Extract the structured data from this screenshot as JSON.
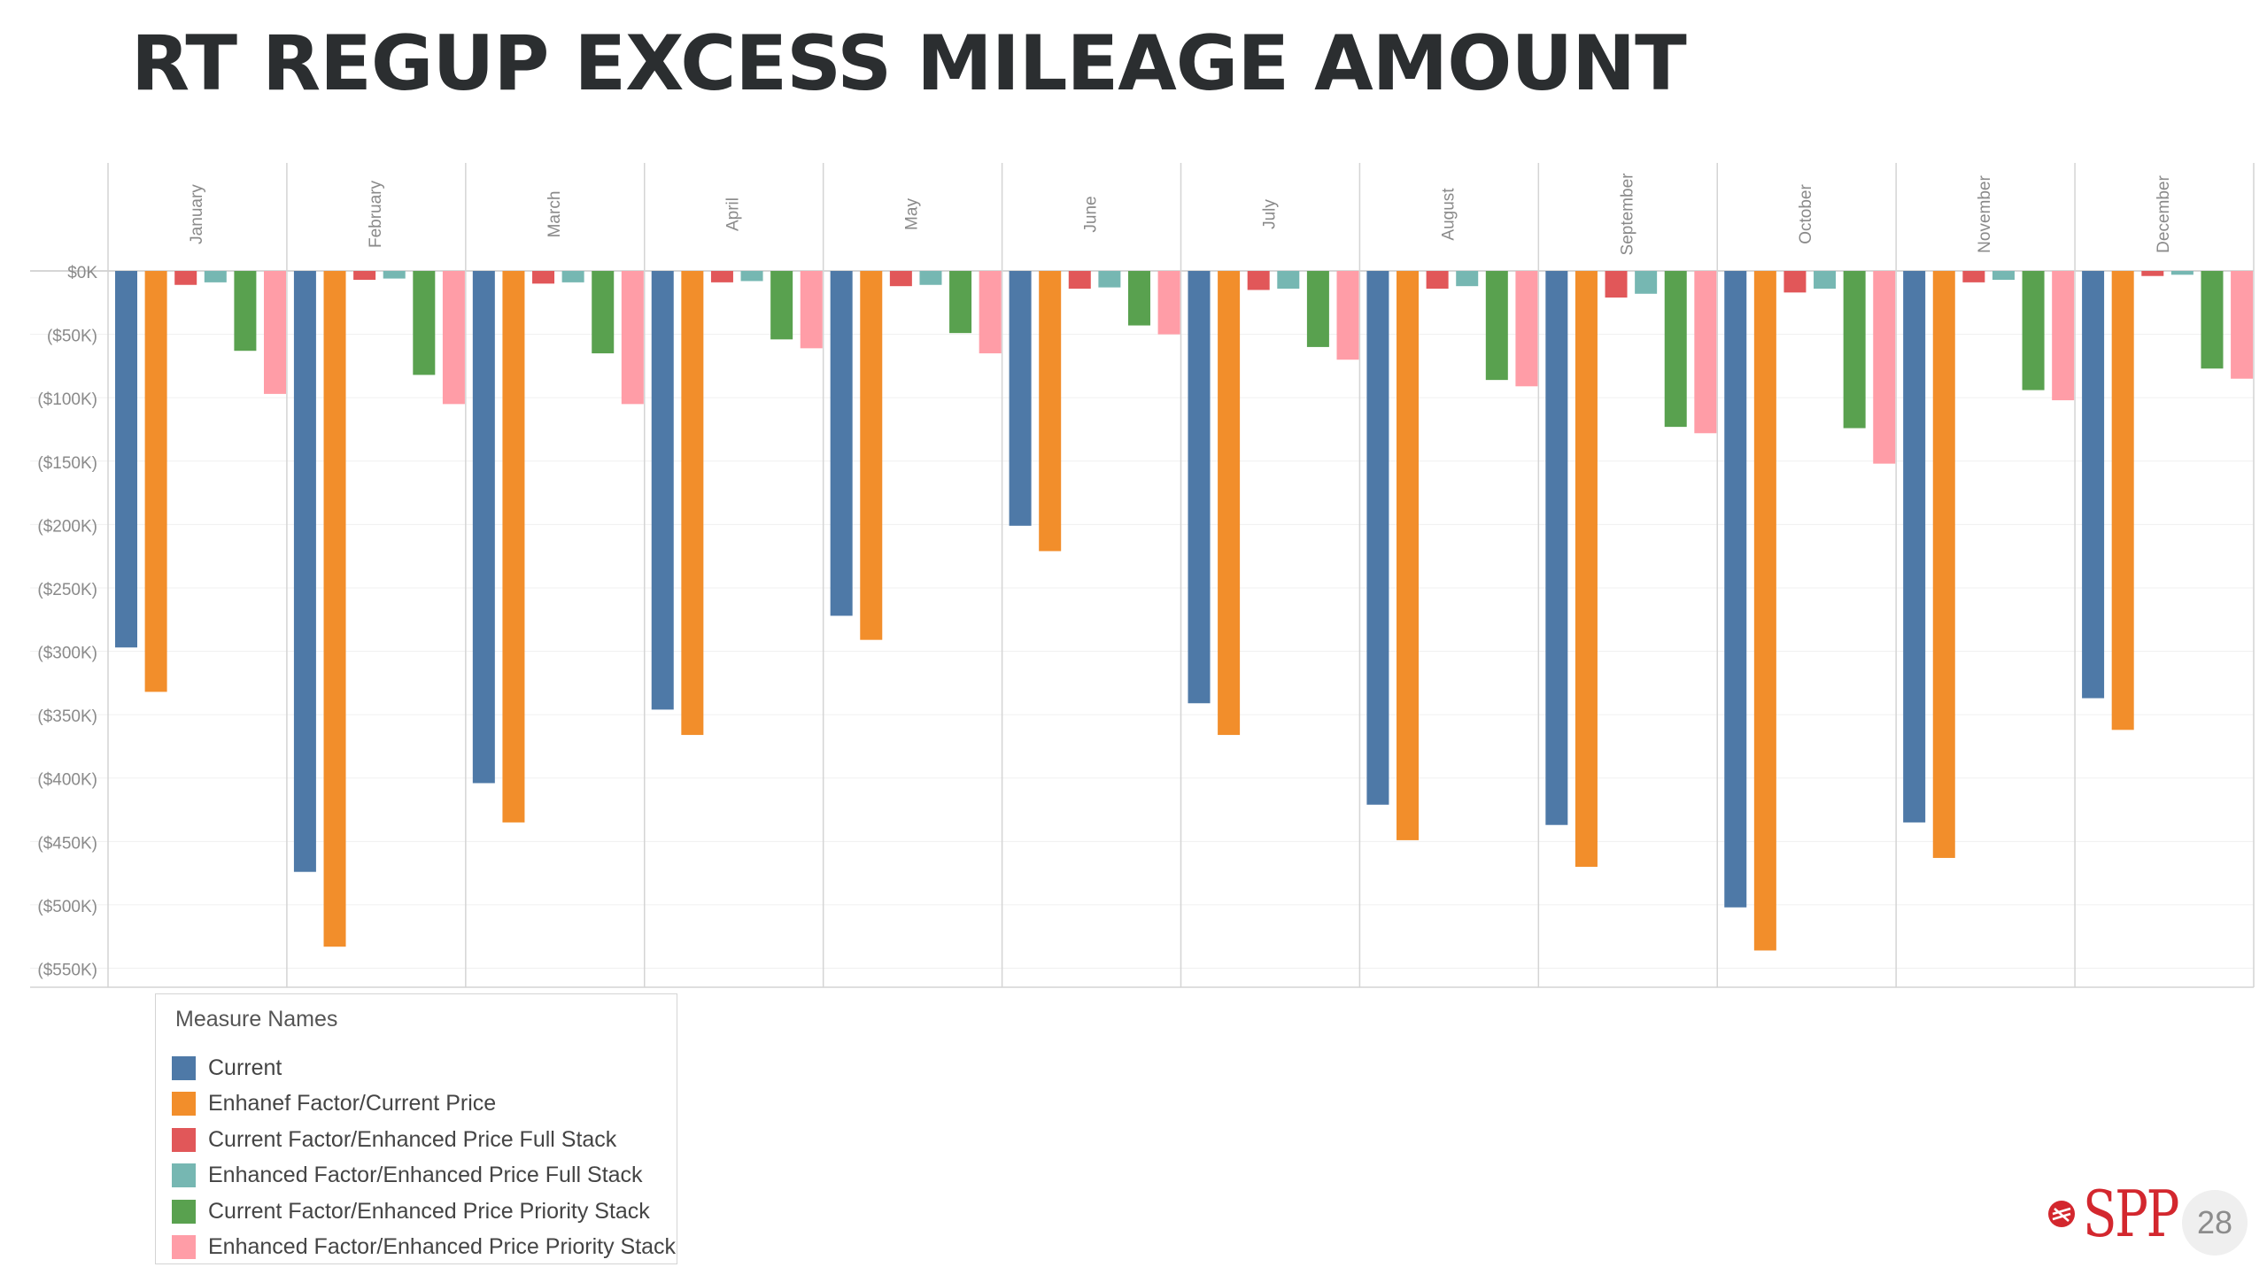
{
  "title": "RT REGUP EXCESS MILEAGE AMOUNT",
  "page_number": "28",
  "logo_text": "SPP",
  "colors": {
    "Current": "#4e79a7",
    "Enhanef Factor/Current Price": "#f28e2b",
    "Current Factor/Enhanced Price Full Stack": "#e15759",
    "Enhanced Factor/Enhanced Price Full Stack": "#76b7b2",
    "Current Factor/Enhanced Price Priority Stack": "#59a14f",
    "Enhanced Factor/Enhanced Price Priority Stack": "#ff9da7",
    "logo": "#d3272e"
  },
  "legend": {
    "title": "Measure Names",
    "items": [
      "Current",
      "Enhanef Factor/Current Price",
      "Current Factor/Enhanced Price Full Stack",
      "Enhanced Factor/Enhanced Price Full Stack",
      "Current Factor/Enhanced Price Priority Stack",
      "Enhanced Factor/Enhanced Price Priority Stack"
    ]
  },
  "chart_data": {
    "type": "bar",
    "categories": [
      "January",
      "February",
      "March",
      "April",
      "May",
      "June",
      "July",
      "August",
      "September",
      "October",
      "November",
      "December"
    ],
    "y_ticks": [
      "$0K",
      "($50K)",
      "($100K)",
      "($150K)",
      "($200K)",
      "($250K)",
      "($300K)",
      "($350K)",
      "($400K)",
      "($450K)",
      "($500K)",
      "($550K)"
    ],
    "ylim": [
      -565,
      0
    ],
    "units": "$K",
    "grid": true,
    "legend_placement": "bottom-left",
    "series": [
      {
        "name": "Current",
        "values": [
          -297,
          -474,
          -404,
          -346,
          -272,
          -201,
          -341,
          -421,
          -437,
          -502,
          -435,
          -337
        ]
      },
      {
        "name": "Enhanef Factor/Current Price",
        "values": [
          -332,
          -533,
          -435,
          -366,
          -291,
          -221,
          -366,
          -449,
          -470,
          -536,
          -463,
          -362
        ]
      },
      {
        "name": "Current Factor/Enhanced Price Full Stack",
        "values": [
          -11,
          -7,
          -10,
          -9,
          -12,
          -14,
          -15,
          -14,
          -21,
          -17,
          -9,
          -4
        ]
      },
      {
        "name": "Enhanced Factor/Enhanced Price Full Stack",
        "values": [
          -9,
          -6,
          -9,
          -8,
          -11,
          -13,
          -14,
          -12,
          -18,
          -14,
          -7,
          -3
        ]
      },
      {
        "name": "Current Factor/Enhanced Price Priority Stack",
        "values": [
          -63,
          -82,
          -65,
          -54,
          -49,
          -43,
          -60,
          -86,
          -123,
          -124,
          -94,
          -77
        ]
      },
      {
        "name": "Enhanced Factor/Enhanced Price Priority Stack",
        "values": [
          -97,
          -105,
          -105,
          -61,
          -65,
          -50,
          -70,
          -91,
          -128,
          -152,
          -102,
          -85
        ]
      }
    ]
  }
}
